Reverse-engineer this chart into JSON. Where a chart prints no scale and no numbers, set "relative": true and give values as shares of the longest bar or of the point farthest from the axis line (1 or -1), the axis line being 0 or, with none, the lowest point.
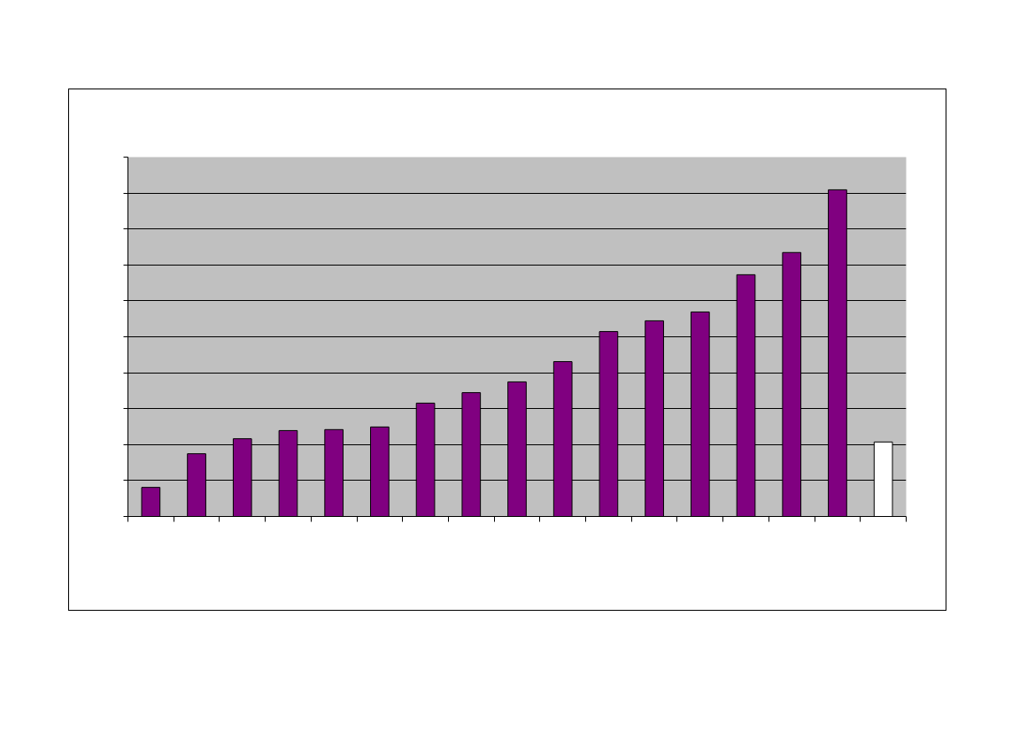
{
  "chart_data": {
    "type": "bar",
    "relative": true,
    "grid": "y",
    "categories": [
      null,
      null,
      null,
      null,
      null,
      null,
      null,
      null,
      null,
      null,
      null,
      null,
      null,
      null,
      null,
      null,
      null
    ],
    "values": [
      0.089,
      0.192,
      0.238,
      0.263,
      0.266,
      0.274,
      0.347,
      0.379,
      0.412,
      0.474,
      0.566,
      0.599,
      0.626,
      0.74,
      0.808,
      1,
      0.228
    ],
    "colors": [
      "#800080",
      "#800080",
      "#800080",
      "#800080",
      "#800080",
      "#800080",
      "#800080",
      "#800080",
      "#800080",
      "#800080",
      "#800080",
      "#800080",
      "#800080",
      "#800080",
      "#800080",
      "#800080",
      "#ffffff"
    ]
  }
}
